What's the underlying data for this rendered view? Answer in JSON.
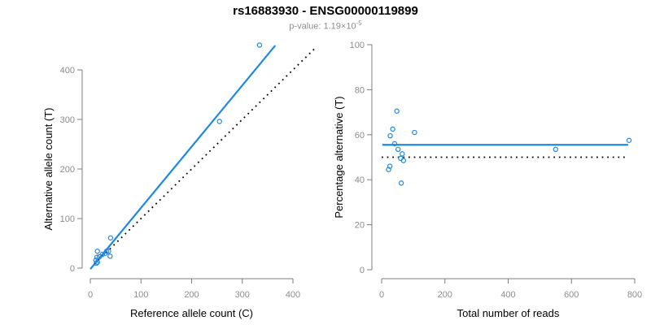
{
  "header": {
    "title": "rs16883930 - ENSG00000119899",
    "subtitle_prefix": "p-value: 1.19×10",
    "subtitle_exponent": "-5"
  },
  "colors": {
    "accent_blue": "#1E88E5",
    "dotted_black": "#000000",
    "tick_label_gray": "#8c8c8c",
    "axis_line_gray": "#7c7c7c"
  },
  "chart_data": [
    {
      "type": "scatter",
      "name": "allele-counts-panel",
      "xlabel": "Reference allele count (C)",
      "ylabel": "Alternative allele count (T)",
      "xticks": [
        0,
        100,
        200,
        300,
        400
      ],
      "yticks": [
        0,
        100,
        200,
        300,
        400
      ],
      "xlim": [
        -16,
        460
      ],
      "ylim": [
        -18,
        460
      ],
      "grid": false,
      "legend": "none",
      "points": [
        [
          14,
          34
        ],
        [
          13,
          22
        ],
        [
          11,
          16
        ],
        [
          40,
          61
        ],
        [
          18,
          23
        ],
        [
          24,
          28
        ],
        [
          32,
          34
        ],
        [
          30,
          30
        ],
        [
          36,
          34
        ],
        [
          14,
          12
        ],
        [
          12,
          10
        ],
        [
          39,
          24
        ],
        [
          255,
          296
        ],
        [
          334,
          450
        ]
      ],
      "lines": [
        {
          "name": "regression-line",
          "style": "solid",
          "color": "blue",
          "x1": 0,
          "y1": -2,
          "x2": 365,
          "y2": 449
        },
        {
          "name": "identity-line",
          "style": "dotted",
          "color": "black",
          "x1": 8,
          "y1": 8,
          "x2": 446,
          "y2": 446
        }
      ]
    },
    {
      "type": "scatter",
      "name": "percentage-panel",
      "xlabel": "Total number of reads",
      "ylabel": "Percentage alternative (T)",
      "xticks": [
        0,
        200,
        400,
        600,
        800
      ],
      "yticks": [
        0,
        20,
        40,
        60,
        80,
        100
      ],
      "xlim": [
        -30,
        830
      ],
      "ylim": [
        0,
        100
      ],
      "grid": false,
      "legend": "none",
      "points": [
        [
          48,
          70.5
        ],
        [
          35,
          62.5
        ],
        [
          27,
          59.5
        ],
        [
          104,
          61
        ],
        [
          41,
          56
        ],
        [
          52,
          53.5
        ],
        [
          65,
          51.5
        ],
        [
          60,
          49.5
        ],
        [
          69,
          48.5
        ],
        [
          26,
          46
        ],
        [
          22,
          44.5
        ],
        [
          62,
          38.5
        ],
        [
          550,
          53.5
        ],
        [
          782,
          57.5
        ]
      ],
      "lines": [
        {
          "name": "mean-percentage-line",
          "style": "solid",
          "color": "blue",
          "x1": 2,
          "y1": 55.5,
          "x2": 779,
          "y2": 55.5
        },
        {
          "name": "expected-50pct-line",
          "style": "dotted",
          "color": "black",
          "x1": 0,
          "y1": 50,
          "x2": 772,
          "y2": 50
        }
      ]
    }
  ]
}
